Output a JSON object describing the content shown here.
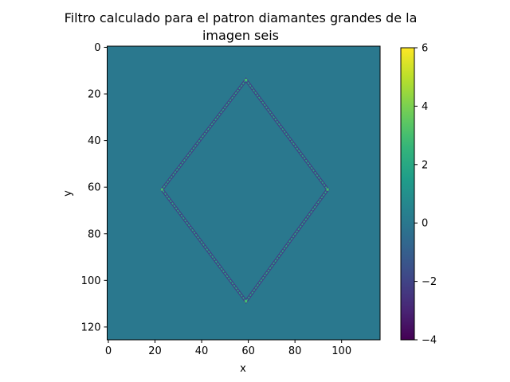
{
  "chart_data": {
    "type": "heatmap",
    "title_lines": [
      "Filtro calculado para el patron diamantes grandes de la",
      "imagen seis"
    ],
    "xlabel": "x",
    "ylabel": "y",
    "xlim": [
      -0.5,
      116.5
    ],
    "ylim": [
      125.5,
      -0.5
    ],
    "x_ticks": [
      0,
      20,
      40,
      60,
      80,
      100
    ],
    "y_ticks": [
      0,
      20,
      40,
      60,
      80,
      100,
      120
    ],
    "colorbar": {
      "colormap": "viridis",
      "vmin": -4,
      "vmax": 6,
      "ticks": [
        -4,
        -2,
        0,
        2,
        4,
        6
      ]
    },
    "background_value": 0,
    "diamond": {
      "top": [
        59,
        14
      ],
      "right": [
        94,
        61
      ],
      "bottom": [
        59,
        109
      ],
      "left": [
        23,
        61
      ],
      "inner_edge_value": 2,
      "outer_edge_value": -2,
      "corner_value": 3
    },
    "colors": {
      "background": "#21918c"
    }
  }
}
